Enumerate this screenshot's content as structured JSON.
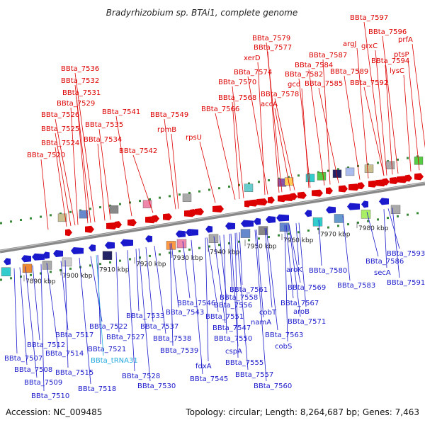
{
  "title": "Bradyrhizobium sp. BTAi1, complete genome",
  "footer": {
    "accession": "Accession: NC_009485",
    "summary": "Topology: circular; Length: 8,264,687 bp; Genes: 7,463"
  },
  "colors": {
    "top_strand": "#dd0000",
    "bottom_strand": "#1a1acc",
    "rna_gene": "#22aadd",
    "backbone": "#888888",
    "tick_green": "#3a8a3a"
  },
  "scale_labels": [
    "7890 kbp",
    "7900 kbp",
    "7910 kbp",
    "7920 kbp",
    "7930 kbp",
    "7940 kbp",
    "7950 kbp",
    "7960 kbp",
    "7970 kbp",
    "7980 kbp"
  ],
  "top_genes": [
    "BBta_7520",
    "BBta_7524",
    "BBta_7525",
    "BBta_7526",
    "BBta_7529",
    "BBta_7531",
    "BBta_7532",
    "BBta_7536",
    "BBta_7534",
    "BBta_7535",
    "BBta_7541",
    "BBta_7542",
    "rpmB",
    "BBta_7549",
    "rpsU",
    "BBta_7566",
    "BBta_7568",
    "BBta_7570",
    "accA",
    "BBta_7574",
    "xerD",
    "BBta_7577",
    "BBta_7579",
    "BBta_7578",
    "gcd",
    "BBta_7582",
    "BBta_7584",
    "BBta_7585",
    "BBta_7587",
    "argJ",
    "BBta_7589",
    "BBta_7592",
    "BBta_7594",
    "grxC",
    "BBta_7596",
    "BBta_7597",
    "lysC",
    "ptsP",
    "prfA"
  ],
  "bottom_genes": [
    "BBta_7507",
    "BBta_7508",
    "BBta_7509",
    "BBta_7510",
    "BBta_7512",
    "BBta_7514",
    "BBta_7515",
    "BBta_7517",
    "BBta_7518",
    "BBta_7521",
    "BBta_tRNA31",
    "BBta_7522",
    "BBta_7527",
    "BBta_7528",
    "BBta_7530",
    "BBta_7533",
    "BBta_7537",
    "BBta_7538",
    "BBta_7539",
    "BBta_7543",
    "BBta_7545",
    "fdxA",
    "BBta_7546",
    "BBta_7547",
    "BBta_7550",
    "cspA",
    "BBta_7551",
    "BBta_7555",
    "BBta_7556",
    "BBta_7557",
    "BBta_7558",
    "namA",
    "BBta_7560",
    "BBta_7561",
    "cobT",
    "BBta_7563",
    "cobS",
    "BBta_7567",
    "BBta_7569",
    "aroK",
    "aroB",
    "BBta_7571",
    "BBta_7580",
    "BBta_7583",
    "BBta_7586",
    "secA",
    "BBta_7591",
    "BBta_7593"
  ]
}
